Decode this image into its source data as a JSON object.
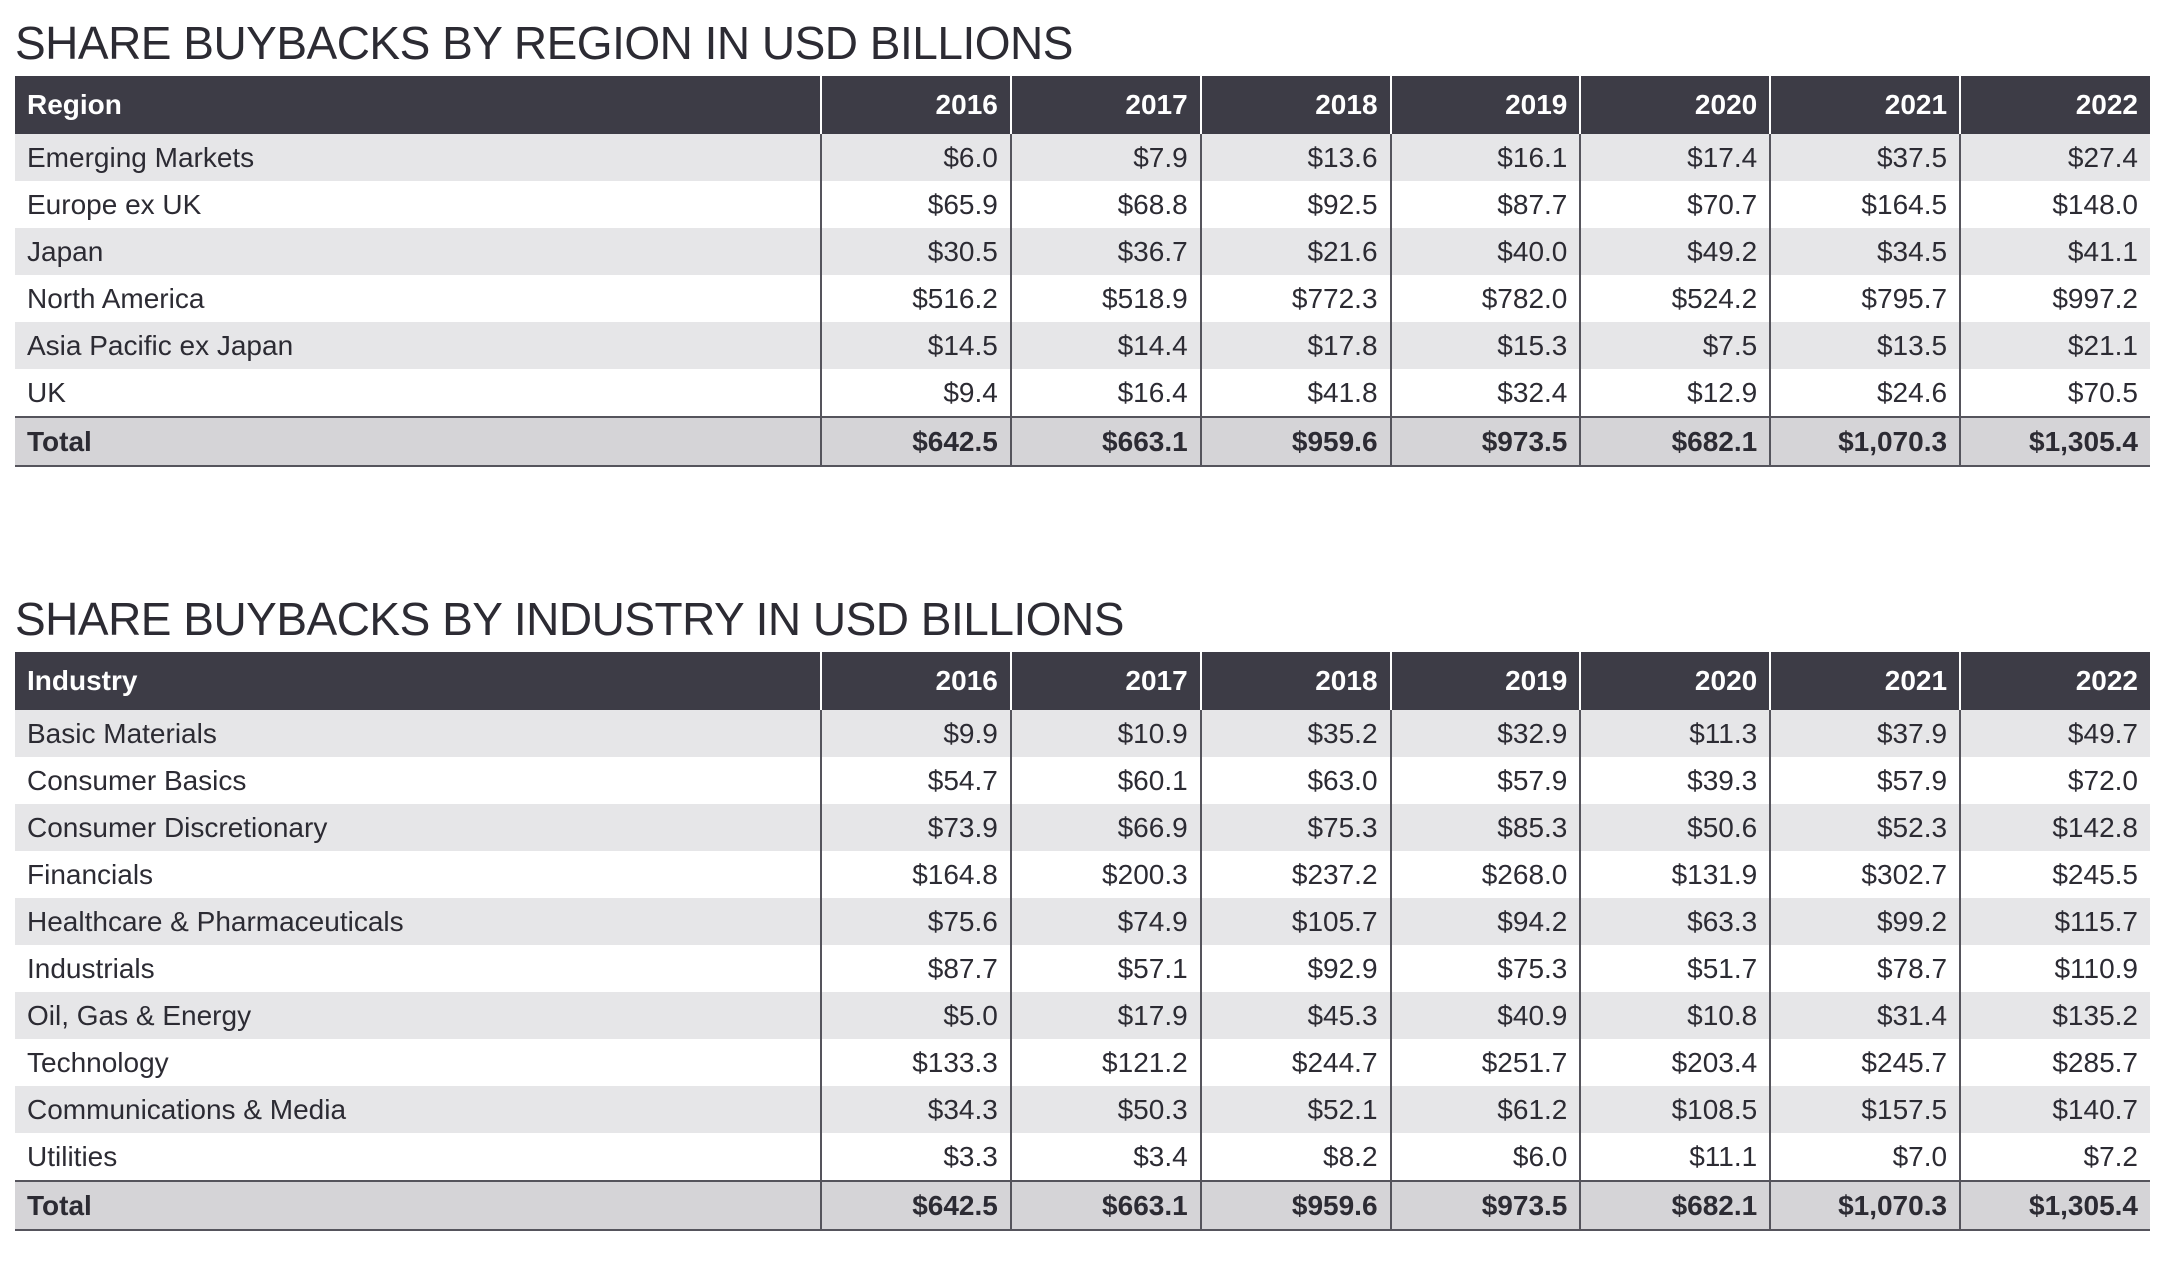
{
  "tables": [
    {
      "title": "SHARE BUYBACKS BY REGION IN USD BILLIONS",
      "header": [
        "Region",
        "2016",
        "2017",
        "2018",
        "2019",
        "2020",
        "2021",
        "2022"
      ],
      "rows": [
        [
          "Emerging Markets",
          "$6.0",
          "$7.9",
          "$13.6",
          "$16.1",
          "$17.4",
          "$37.5",
          "$27.4"
        ],
        [
          "Europe ex UK",
          "$65.9",
          "$68.8",
          "$92.5",
          "$87.7",
          "$70.7",
          "$164.5",
          "$148.0"
        ],
        [
          "Japan",
          "$30.5",
          "$36.7",
          "$21.6",
          "$40.0",
          "$49.2",
          "$34.5",
          "$41.1"
        ],
        [
          "North America",
          "$516.2",
          "$518.9",
          "$772.3",
          "$782.0",
          "$524.2",
          "$795.7",
          "$997.2"
        ],
        [
          "Asia Pacific ex Japan",
          "$14.5",
          "$14.4",
          "$17.8",
          "$15.3",
          "$7.5",
          "$13.5",
          "$21.1"
        ],
        [
          "UK",
          "$9.4",
          "$16.4",
          "$41.8",
          "$32.4",
          "$12.9",
          "$24.6",
          "$70.5"
        ]
      ],
      "total": [
        "Total",
        "$642.5",
        "$663.1",
        "$959.6",
        "$973.5",
        "$682.1",
        "$1,070.3",
        "$1,305.4"
      ]
    },
    {
      "title": "SHARE BUYBACKS BY INDUSTRY IN USD BILLIONS",
      "header": [
        "Industry",
        "2016",
        "2017",
        "2018",
        "2019",
        "2020",
        "2021",
        "2022"
      ],
      "rows": [
        [
          "Basic Materials",
          "$9.9",
          "$10.9",
          "$35.2",
          "$32.9",
          "$11.3",
          "$37.9",
          "$49.7"
        ],
        [
          "Consumer Basics",
          "$54.7",
          "$60.1",
          "$63.0",
          "$57.9",
          "$39.3",
          "$57.9",
          "$72.0"
        ],
        [
          "Consumer Discretionary",
          "$73.9",
          "$66.9",
          "$75.3",
          "$85.3",
          "$50.6",
          "$52.3",
          "$142.8"
        ],
        [
          "Financials",
          "$164.8",
          "$200.3",
          "$237.2",
          "$268.0",
          "$131.9",
          "$302.7",
          "$245.5"
        ],
        [
          "Healthcare & Pharmaceuticals",
          "$75.6",
          "$74.9",
          "$105.7",
          "$94.2",
          "$63.3",
          "$99.2",
          "$115.7"
        ],
        [
          "Industrials",
          "$87.7",
          "$57.1",
          "$92.9",
          "$75.3",
          "$51.7",
          "$78.7",
          "$110.9"
        ],
        [
          "Oil, Gas & Energy",
          "$5.0",
          "$17.9",
          "$45.3",
          "$40.9",
          "$10.8",
          "$31.4",
          "$135.2"
        ],
        [
          "Technology",
          "$133.3",
          "$121.2",
          "$244.7",
          "$251.7",
          "$203.4",
          "$245.7",
          "$285.7"
        ],
        [
          "Communications & Media",
          "$34.3",
          "$50.3",
          "$52.1",
          "$61.2",
          "$108.5",
          "$157.5",
          "$140.7"
        ],
        [
          "Utilities",
          "$3.3",
          "$3.4",
          "$8.2",
          "$6.0",
          "$11.1",
          "$7.0",
          "$7.2"
        ]
      ],
      "total": [
        "Total",
        "$642.5",
        "$663.1",
        "$959.6",
        "$973.5",
        "$682.1",
        "$1,070.3",
        "$1,305.4"
      ]
    }
  ]
}
